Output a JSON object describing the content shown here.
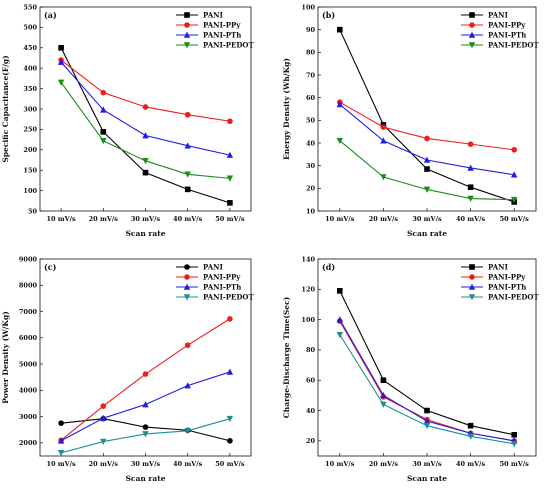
{
  "chart_data": [
    {
      "type": "line",
      "panel": "(a)",
      "categories": [
        "10 mV/s",
        "20 mV/s",
        "30 mV/s",
        "40 mV/s",
        "50 mV/s"
      ],
      "xlabel": "Scan rate",
      "ylabel": "Specific Capacitance(F/g)",
      "ylim": [
        50,
        550
      ],
      "yticks": [
        50,
        100,
        150,
        200,
        250,
        300,
        350,
        400,
        450,
        500,
        550
      ],
      "legend_position": "top-right",
      "series": [
        {
          "name": "PANI",
          "color": "#000000",
          "marker": "square",
          "values": [
            450,
            244,
            144,
            103,
            70
          ]
        },
        {
          "name": "PANI-PPy",
          "color": "#ee1c1c",
          "marker": "circle",
          "values": [
            420,
            340,
            305,
            286,
            270
          ]
        },
        {
          "name": "PANI-PTh",
          "color": "#1e1ee6",
          "marker": "triangle-up",
          "values": [
            415,
            298,
            235,
            210,
            187
          ]
        },
        {
          "name": "PANI-PEDOT",
          "color": "#1a8c1a",
          "marker": "triangle-down",
          "values": [
            365,
            222,
            173,
            140,
            130
          ]
        }
      ]
    },
    {
      "type": "line",
      "panel": "(b)",
      "categories": [
        "10 mV/s",
        "20 mV/s",
        "30 mV/s",
        "40 mV/s",
        "50 mV/s"
      ],
      "xlabel": "Scan rate",
      "ylabel": "Energy Density (Wh/Kg)",
      "ylim": [
        10,
        100
      ],
      "yticks": [
        10,
        20,
        30,
        40,
        50,
        60,
        70,
        80,
        90,
        100
      ],
      "legend_position": "top-right",
      "series": [
        {
          "name": "PANI",
          "color": "#000000",
          "marker": "square",
          "values": [
            90,
            48,
            28.5,
            20.5,
            14
          ]
        },
        {
          "name": "PANI-PPy",
          "color": "#ee1c1c",
          "marker": "circle",
          "values": [
            58,
            47,
            42,
            39.5,
            37
          ]
        },
        {
          "name": "PANI-PTh",
          "color": "#1e1ee6",
          "marker": "triangle-up",
          "values": [
            57,
            41,
            32.5,
            29,
            26
          ]
        },
        {
          "name": "PANI-PEDOT",
          "color": "#1a8c1a",
          "marker": "triangle-down",
          "values": [
            41,
            25,
            19.5,
            15.5,
            15
          ]
        }
      ]
    },
    {
      "type": "line",
      "panel": "(c)",
      "categories": [
        "10 mV/s",
        "20 mV/s",
        "30 mV/s",
        "40 mV/s",
        "50 mV/s"
      ],
      "xlabel": "Scan rate",
      "ylabel": "Power Density (W/Kg)",
      "ylim": [
        1500,
        9000
      ],
      "yticks": [
        2000,
        3000,
        4000,
        5000,
        6000,
        7000,
        8000,
        9000
      ],
      "legend_position": "top-right",
      "series": [
        {
          "name": "PANI",
          "color": "#000000",
          "marker": "circle",
          "values": [
            2750,
            2920,
            2600,
            2480,
            2080
          ]
        },
        {
          "name": "PANI-PPy",
          "color": "#ee1c1c",
          "marker": "circle",
          "values": [
            2100,
            3400,
            4620,
            5720,
            6720
          ]
        },
        {
          "name": "PANI-PTh",
          "color": "#1e1ee6",
          "marker": "triangle-up",
          "values": [
            2080,
            2940,
            3460,
            4180,
            4700
          ]
        },
        {
          "name": "PANI-PEDOT",
          "color": "#1a9090",
          "marker": "triangle-down",
          "values": [
            1620,
            2050,
            2340,
            2460,
            2920
          ]
        }
      ]
    },
    {
      "type": "line",
      "panel": "(d)",
      "categories": [
        "10 mV/s",
        "20 mV/s",
        "30 mV/s",
        "40 mV/s",
        "50 mV/s"
      ],
      "xlabel": "Scan rate",
      "ylabel": "Charge-Discharge Time(Sec)",
      "ylim": [
        10,
        140
      ],
      "yticks": [
        20,
        40,
        60,
        80,
        100,
        120,
        140
      ],
      "legend_position": "top-right",
      "series": [
        {
          "name": "PANI",
          "color": "#000000",
          "marker": "square",
          "values": [
            119,
            60,
            40,
            30,
            24
          ]
        },
        {
          "name": "PANI-PPy",
          "color": "#ee1c1c",
          "marker": "circle",
          "values": [
            99,
            49,
            34,
            25,
            20
          ]
        },
        {
          "name": "PANI-PTh",
          "color": "#1e1ee6",
          "marker": "triangle-up",
          "values": [
            100,
            50,
            33,
            25,
            20
          ]
        },
        {
          "name": "PANI-PEDOT",
          "color": "#1a9090",
          "marker": "triangle-down",
          "values": [
            90,
            44,
            30,
            23,
            18
          ]
        }
      ]
    }
  ]
}
